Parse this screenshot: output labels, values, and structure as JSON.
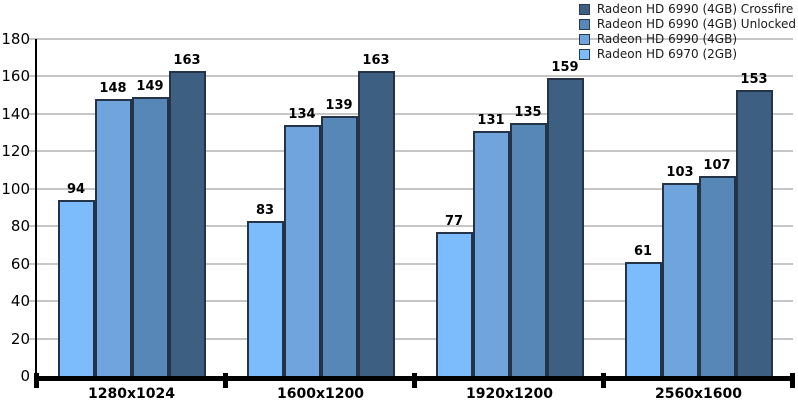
{
  "chart_data": {
    "type": "bar",
    "title": "",
    "categories": [
      "1280x1024",
      "1600x1200",
      "1920x1200",
      "2560x1600"
    ],
    "series": [
      {
        "name": "Radeon HD 6970 (2GB)",
        "color": "#7DBCFC",
        "values": [
          94,
          83,
          77,
          61
        ]
      },
      {
        "name": "Radeon HD 6990 (4GB)",
        "color": "#6FA4DC",
        "values": [
          148,
          134,
          131,
          103
        ]
      },
      {
        "name": "Radeon HD 6990 (4GB) Unlocked",
        "color": "#5787B7",
        "values": [
          149,
          139,
          135,
          107
        ]
      },
      {
        "name": "Radeon HD 6990 (4GB) Crossfire",
        "color": "#3D5F81",
        "values": [
          163,
          163,
          159,
          153
        ]
      }
    ],
    "legend": {
      "position": "top-right",
      "order_top_to_bottom": [
        "Radeon HD 6990 (4GB) Crossfire",
        "Radeon HD 6990 (4GB) Unlocked",
        "Radeon HD 6990 (4GB)",
        "Radeon HD 6970 (2GB)"
      ]
    },
    "xlabel": "",
    "ylabel": "",
    "y_axis": {
      "min": 0,
      "max": 180,
      "step": 20,
      "tick_labels": [
        "0",
        "20",
        "40",
        "60",
        "80",
        "100",
        "120",
        "140",
        "160",
        "180"
      ]
    },
    "grid": true,
    "data_labels_shown": true
  },
  "colors": {
    "background": "#FFFFFF",
    "gridline": "#C6C6C6",
    "axis": "#000000",
    "bar_border": "#253349",
    "text": "#000000"
  }
}
